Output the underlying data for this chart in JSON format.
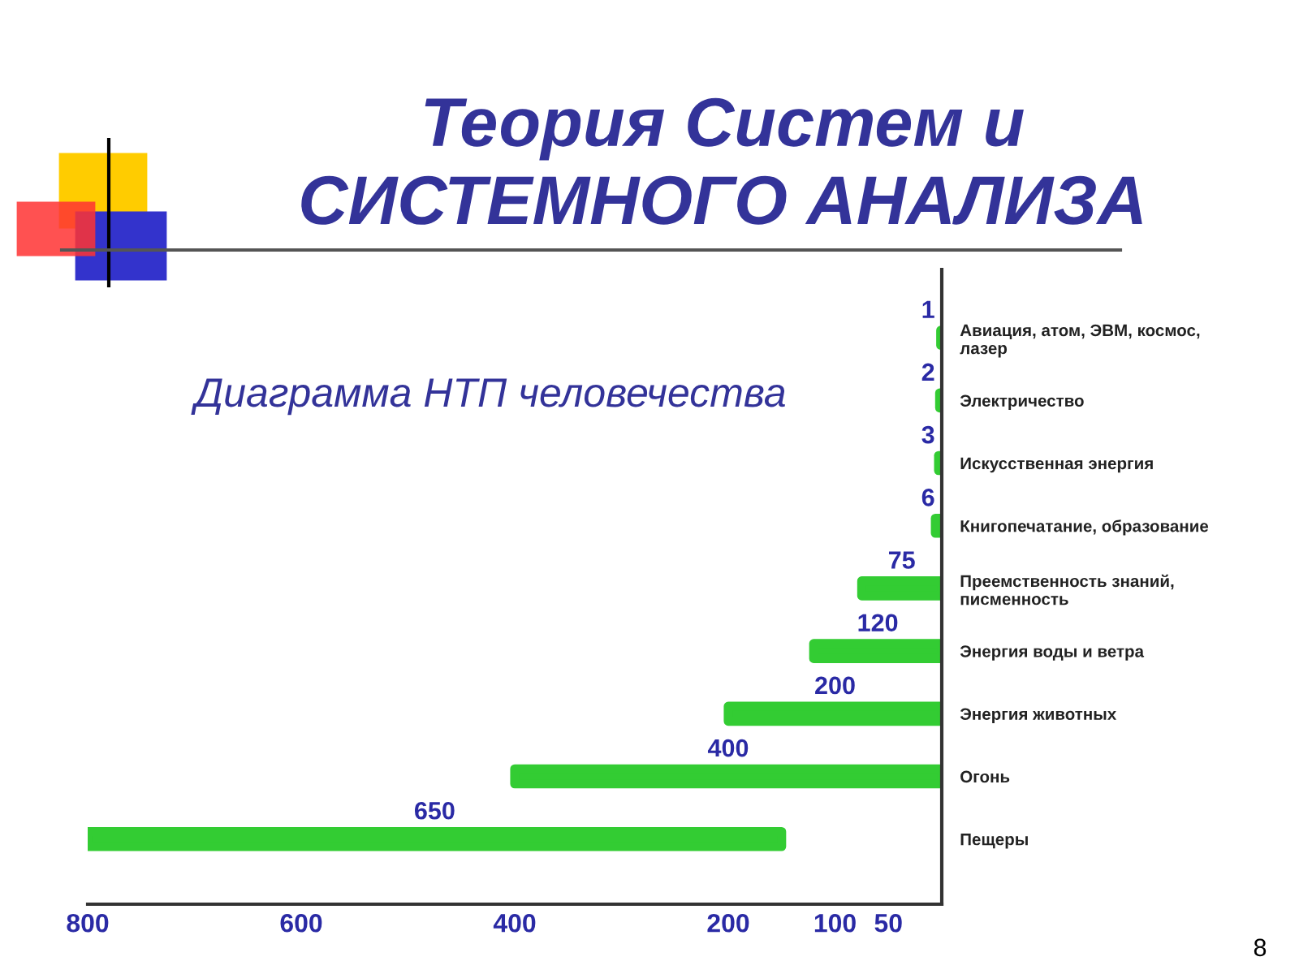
{
  "chart_data": {
    "type": "bar",
    "orientation": "horizontal",
    "title": "Теория Систем и\nСИСТЕМНОГО АНАЛИЗА",
    "subtitle": "Диаграмма НТП человечества",
    "categories": [
      "Авиация, атом, ЭВМ, космос,\nлазер",
      "Электричество",
      "Искусственная энергия",
      "Книгопечатание, образование",
      "Преемственность знаний,\nписменность",
      "Энергия воды и ветра",
      "Энергия животных",
      "Огонь",
      "Пещеры"
    ],
    "values": [
      1,
      2,
      3,
      6,
      75,
      120,
      200,
      400,
      650
    ],
    "base": [
      0,
      0,
      0,
      0,
      0,
      0,
      0,
      0,
      150
    ],
    "color": "#33cc33",
    "xlim": [
      800,
      0
    ],
    "xticks": [
      800,
      600,
      400,
      200,
      100,
      50
    ],
    "data_labels": true,
    "annotations": [
      "8"
    ]
  }
}
